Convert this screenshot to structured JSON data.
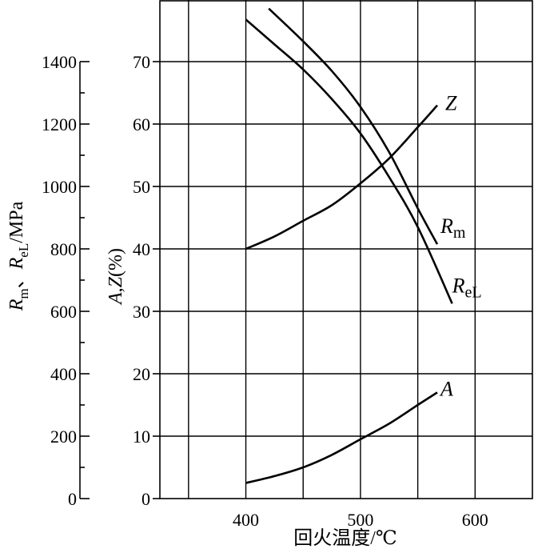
{
  "chart_data": {
    "type": "line",
    "xlabel": "回火温度/℃",
    "x_ticks": [
      "400",
      "500",
      "600"
    ],
    "xlim": [
      325,
      650
    ],
    "ylabel_left": "R_m、R_eL/MPa",
    "ylabel_left_parts": {
      "r1": "R",
      "sub1": "m",
      "sep": "、",
      "r2": "R",
      "sub2": "eL",
      "unit": "/MPa"
    },
    "ylim_left": [
      0,
      1400
    ],
    "y_ticks_left": [
      "0",
      "200",
      "400",
      "600",
      "800",
      "1000",
      "1200",
      "1400"
    ],
    "ylabel_right": "A, Z(%)",
    "ylabel_right_parts": {
      "a": "A",
      "sep": ",",
      "z": "Z",
      "unit": "(%)"
    },
    "ylim_right": [
      0,
      70
    ],
    "y_ticks_right": [
      "0",
      "10",
      "20",
      "30",
      "40",
      "50",
      "60",
      "70"
    ],
    "grid": true,
    "series": [
      {
        "name": "R_m",
        "label_main": "R",
        "label_sub": "m",
        "axis": "left",
        "x": [
          420,
          450,
          475,
          500,
          525,
          550,
          567
        ],
        "y": [
          1570,
          1465,
          1370,
          1255,
          1110,
          930,
          815
        ]
      },
      {
        "name": "R_eL",
        "label_main": "R",
        "label_sub": "eL",
        "axis": "left",
        "x": [
          400,
          425,
          450,
          475,
          500,
          525,
          550,
          580
        ],
        "y": [
          1535,
          1455,
          1375,
          1280,
          1170,
          1030,
          870,
          625
        ]
      },
      {
        "name": "Z",
        "label_main": "Z",
        "axis": "right",
        "x": [
          400,
          425,
          450,
          475,
          500,
          525,
          550,
          567
        ],
        "y": [
          40,
          42,
          44.5,
          47,
          50.5,
          54.5,
          59.5,
          63
        ]
      },
      {
        "name": "A",
        "label_main": "A",
        "axis": "right",
        "x": [
          400,
          425,
          450,
          475,
          500,
          525,
          550,
          567
        ],
        "y": [
          2.5,
          3.6,
          5,
          7,
          9.5,
          12,
          15,
          17
        ]
      }
    ]
  }
}
